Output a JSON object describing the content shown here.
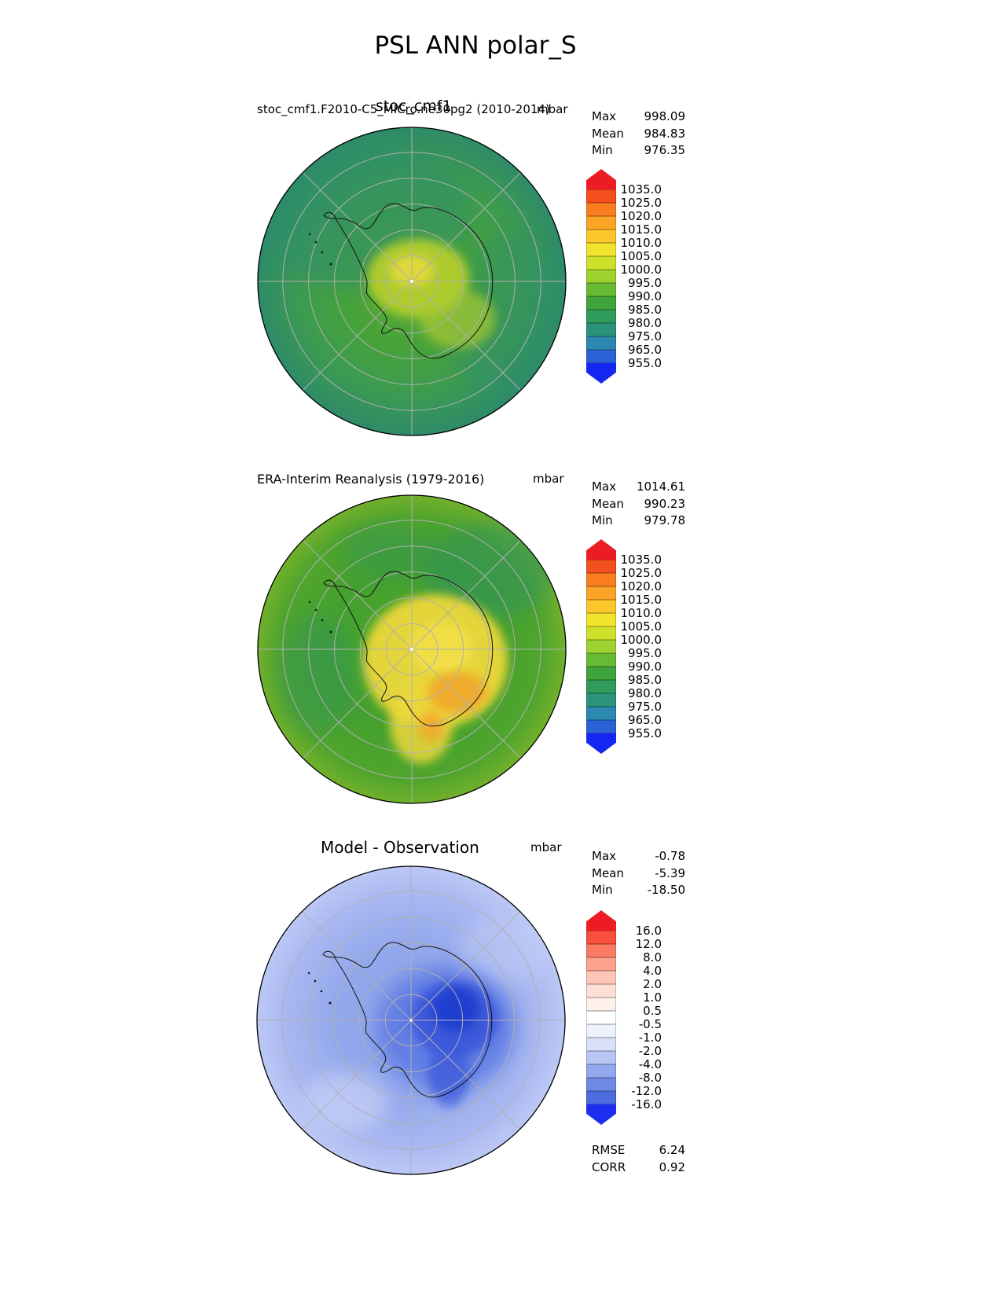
{
  "page_title": "PSL ANN polar_S",
  "panels": [
    {
      "title_long": "stoc_cmf1.F2010-C5_MICro.ne30pg2 (2010-2014)",
      "title_case": "stoc_cmf1",
      "units": "mbar",
      "stats": {
        "max_label": "Max",
        "max_value": "998.09",
        "mean_label": "Mean",
        "mean_value": "984.83",
        "min_label": "Min",
        "min_value": "976.35"
      }
    },
    {
      "title": "ERA-Interim Reanalysis (1979-2016)",
      "units": "mbar",
      "stats": {
        "max_label": "Max",
        "max_value": "1014.61",
        "mean_label": "Mean",
        "mean_value": "990.23",
        "min_label": "Min",
        "min_value": "979.78"
      }
    },
    {
      "title": "Model - Observation",
      "units": "mbar",
      "stats": {
        "max_label": "Max",
        "max_value": "-0.78",
        "mean_label": "Mean",
        "mean_value": "-5.39",
        "min_label": "Min",
        "min_value": "-18.50"
      },
      "extra": {
        "rmse_label": "RMSE",
        "rmse_value": "6.24",
        "corr_label": "CORR",
        "corr_value": "0.92"
      }
    }
  ],
  "colorbars": [
    {
      "segment_height": 17,
      "arrow_height": 26,
      "arrow_top_color": "#ec1c24",
      "arrow_bottom_color": "#1427f0",
      "segment_colors": [
        "#f4501e",
        "#fa7d20",
        "#fca426",
        "#fdc62b",
        "#f2e32d",
        "#cfe02b",
        "#9ed32f",
        "#67ba33",
        "#3fa43c",
        "#2f9c5c",
        "#2b9478",
        "#2b88b0",
        "#2b63d6"
      ],
      "labels": [
        "1035.0",
        "1025.0",
        "1020.0",
        "1015.0",
        "1010.0",
        "1005.0",
        "1000.0",
        "995.0",
        "990.0",
        "985.0",
        "980.0",
        "975.0",
        "965.0",
        "955.0"
      ]
    },
    {
      "segment_height": 17,
      "arrow_height": 26,
      "arrow_top_color": "#ec1c24",
      "arrow_bottom_color": "#1427f0",
      "segment_colors": [
        "#f4501e",
        "#fa7d20",
        "#fca426",
        "#fdc62b",
        "#f2e32d",
        "#cfe02b",
        "#9ed32f",
        "#67ba33",
        "#3fa43c",
        "#2f9c5c",
        "#2b9478",
        "#2b88b0",
        "#2b63d6"
      ],
      "labels": [
        "1035.0",
        "1025.0",
        "1020.0",
        "1015.0",
        "1010.0",
        "1005.0",
        "1000.0",
        "995.0",
        "990.0",
        "985.0",
        "980.0",
        "975.0",
        "965.0",
        "955.0"
      ]
    },
    {
      "segment_height": 17,
      "arrow_height": 26,
      "arrow_top_color": "#ed1c24",
      "arrow_bottom_color": "#1e2df0",
      "segment_colors": [
        "#f94f3c",
        "#fb7a62",
        "#fca28d",
        "#fdc6b6",
        "#fedfd5",
        "#fef0ea",
        "#ffffff",
        "#eef2fd",
        "#d8e0fa",
        "#b8c6f4",
        "#93a8ee",
        "#6f8ae6",
        "#4c6cdf"
      ],
      "labels": [
        "16.0",
        "12.0",
        "8.0",
        "4.0",
        "2.0",
        "1.0",
        "0.5",
        "-0.5",
        "-1.0",
        "-2.0",
        "-4.0",
        "-8.0",
        "-12.0",
        "-16.0"
      ]
    }
  ],
  "maps": [
    {
      "base": [
        "#5cab33",
        "#46a23a",
        "#3c9a52",
        "#2e8b68"
      ],
      "blobs": {
        "teal": "#2e8d6e",
        "yellow_green": "#b9d02c",
        "yellow": "#e4da3e",
        "accent": "#a8c930"
      }
    },
    {
      "base": [
        "#4ca72c",
        "#45a12e",
        "#50a52d",
        "#71b02b"
      ],
      "blobs": {
        "teal": "#2f9160",
        "yellow": "#edd83b",
        "orange": "#f2a42c",
        "core": "#f3e04a"
      }
    },
    {
      "base": [
        "#8aa0e9",
        "#93a8ec",
        "#a9b8f1",
        "#bcc8f5"
      ],
      "blobs": {
        "mid": "#5b78e3",
        "dark": "#3a57da",
        "darkest": "#1e3ccf",
        "light": "#c2cdf6"
      }
    }
  ],
  "chart_data": {
    "type": "heatmap",
    "title": "PSL ANN polar_S",
    "legend_position": "right",
    "panels": [
      {
        "name": "model",
        "title": "stoc_cmf1.F2010-C5_MICro.ne30pg2 (2010-2014)",
        "short_title": "stoc_cmf1",
        "units": "mbar",
        "max": 998.09,
        "mean": 984.83,
        "min": 976.35,
        "levels": [
          955,
          965,
          975,
          980,
          985,
          990,
          995,
          1000,
          1005,
          1010,
          1015,
          1020,
          1025,
          1035
        ]
      },
      {
        "name": "reference",
        "title": "ERA-Interim Reanalysis (1979-2016)",
        "units": "mbar",
        "max": 1014.61,
        "mean": 990.23,
        "min": 979.78,
        "levels": [
          955,
          965,
          975,
          980,
          985,
          990,
          995,
          1000,
          1005,
          1010,
          1015,
          1020,
          1025,
          1035
        ]
      },
      {
        "name": "difference",
        "title": "Model - Observation",
        "units": "mbar",
        "max": -0.78,
        "mean": -5.39,
        "min": -18.5,
        "rmse": 6.24,
        "corr": 0.92,
        "levels": [
          -16,
          -12,
          -8,
          -4,
          -2,
          -1,
          -0.5,
          0.5,
          1,
          2,
          4,
          8,
          12,
          16
        ]
      }
    ]
  }
}
